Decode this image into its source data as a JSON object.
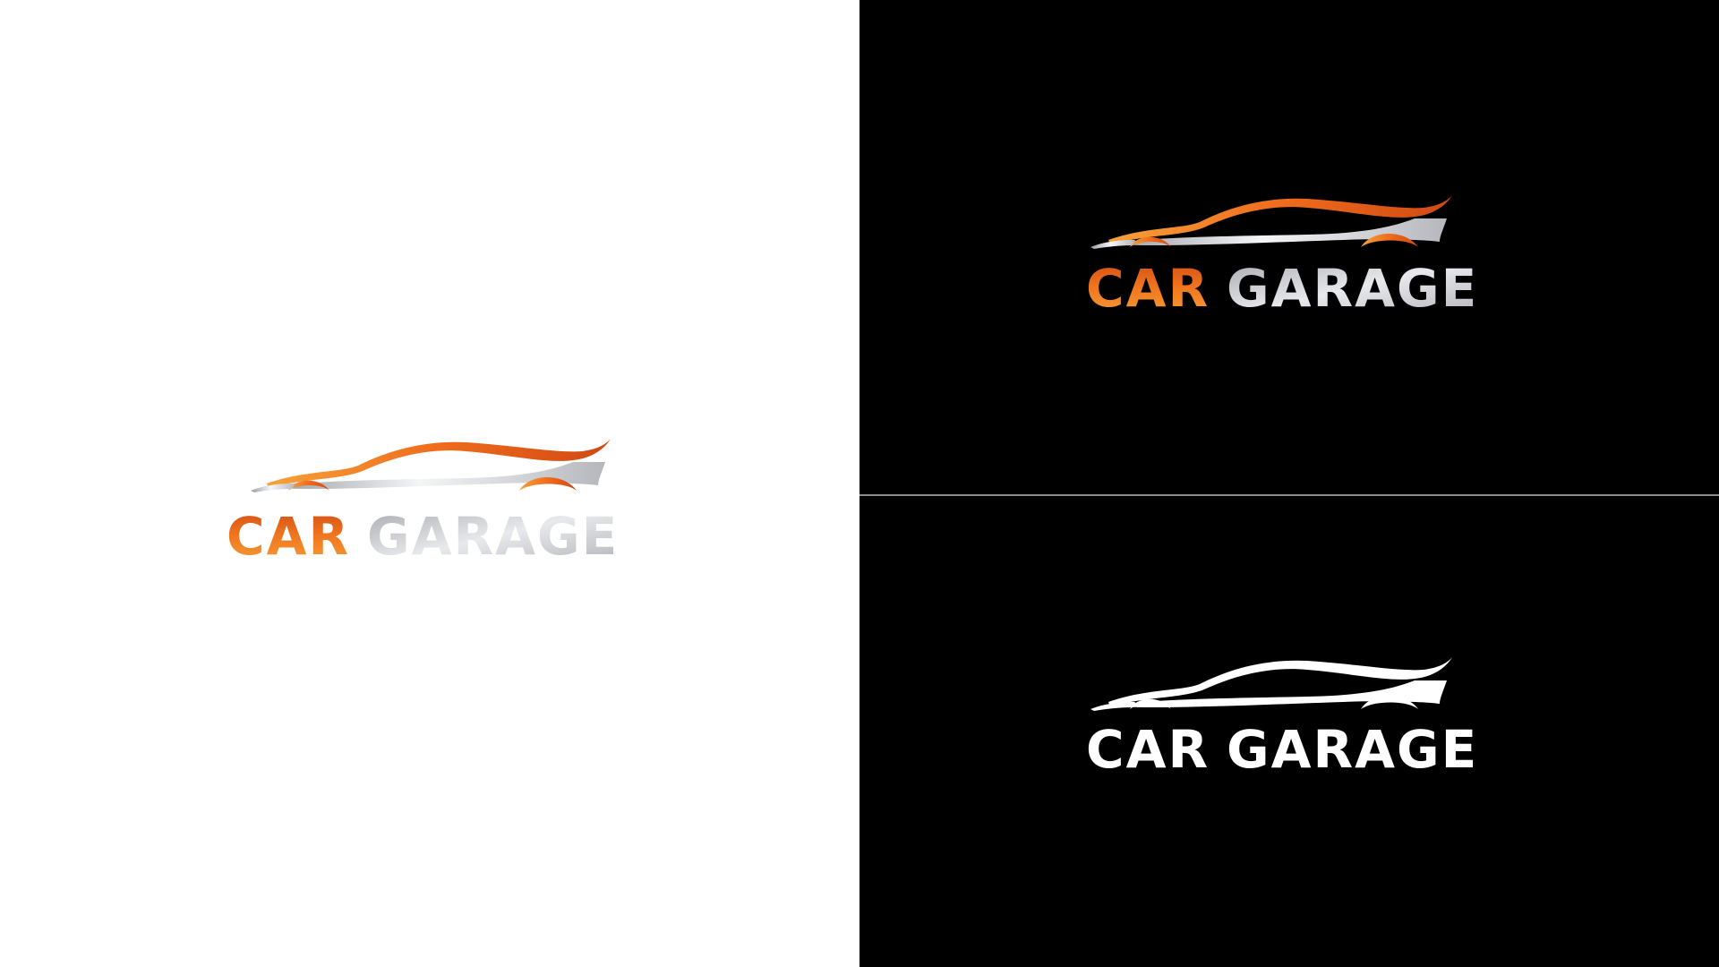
{
  "logo": {
    "word_first": "CAR",
    "word_second": "GARAGE"
  },
  "colors": {
    "light_background": "#ffffff",
    "dark_background": "#000000",
    "divider": "#8a8a8a",
    "orange_light": "#f6a13a",
    "orange_mid": "#ef6c1c",
    "orange_dark": "#d04a12",
    "silver_light": "#f4f5f7",
    "silver_mid": "#c7c9ce",
    "silver_dark": "#9a9ca2",
    "white": "#ffffff"
  },
  "variants": [
    {
      "background": "light",
      "style": "orange-silver"
    },
    {
      "background": "dark",
      "style": "orange-silver"
    },
    {
      "background": "dark",
      "style": "white"
    }
  ]
}
